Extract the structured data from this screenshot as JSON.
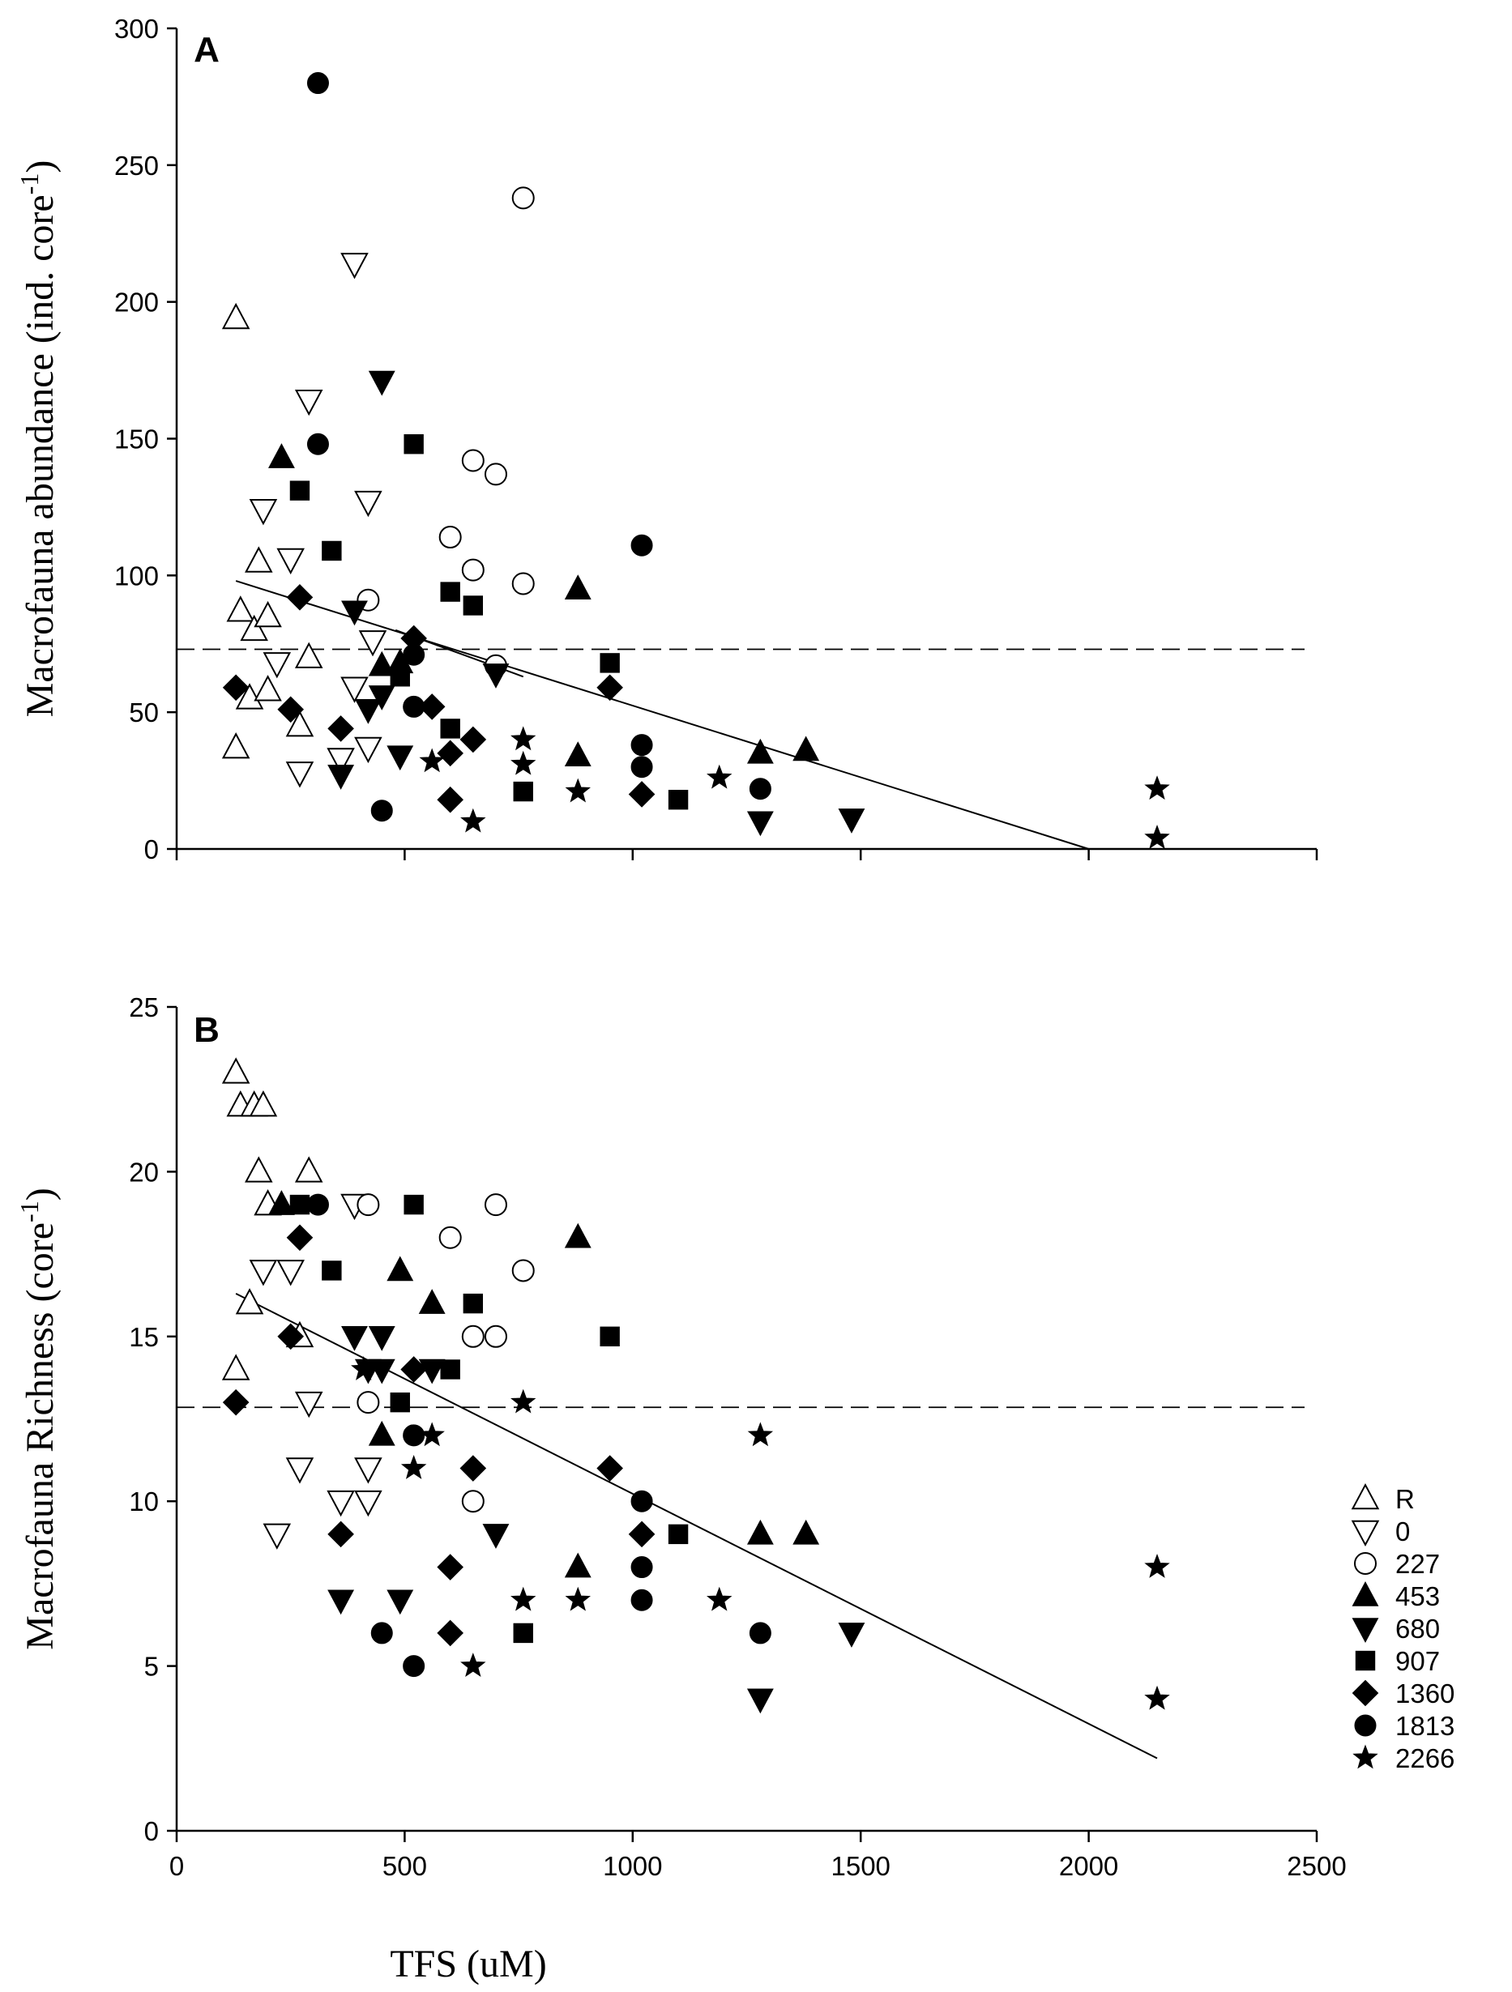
{
  "chart_data": [
    {
      "panel": "A",
      "type": "scatter",
      "ylabel_main": "Macrofauna abundance (ind. core",
      "ylabel_sup": "-1",
      "ylabel_end": ")",
      "xlim": [
        0,
        2500
      ],
      "ylim": [
        0,
        300
      ],
      "xticks": [
        0,
        500,
        1000,
        1500,
        2000,
        2500
      ],
      "yticks": [
        0,
        50,
        100,
        150,
        200,
        250,
        300
      ],
      "mean_line": 73,
      "regression": {
        "x": [
          130,
          2000
        ],
        "y": [
          98,
          0
        ]
      },
      "short_line": {
        "x": [
          480,
          760
        ],
        "y": [
          80,
          63
        ]
      },
      "series": [
        {
          "name": "R",
          "marker": "triangle-up-open",
          "points": [
            [
              130,
              194
            ],
            [
              140,
              87
            ],
            [
              130,
              37
            ],
            [
              160,
              55
            ],
            [
              170,
              80
            ],
            [
              180,
              105
            ],
            [
              200,
              85
            ],
            [
              200,
              58
            ],
            [
              270,
              45
            ],
            [
              290,
              70
            ]
          ]
        },
        {
          "name": "0",
          "marker": "triangle-down-open",
          "points": [
            [
              190,
              124
            ],
            [
              220,
              68
            ],
            [
              250,
              106
            ],
            [
              270,
              28
            ],
            [
              290,
              164
            ],
            [
              360,
              33
            ],
            [
              390,
              214
            ],
            [
              390,
              59
            ],
            [
              420,
              127
            ],
            [
              420,
              37
            ],
            [
              430,
              76
            ]
          ]
        },
        {
          "name": "227",
          "marker": "circle-open",
          "points": [
            [
              420,
              91
            ],
            [
              600,
              114
            ],
            [
              650,
              142
            ],
            [
              650,
              102
            ],
            [
              700,
              137
            ],
            [
              700,
              67
            ],
            [
              760,
              238
            ],
            [
              760,
              97
            ]
          ]
        },
        {
          "name": "453",
          "marker": "triangle-up-filled",
          "points": [
            [
              230,
              143
            ],
            [
              450,
              67
            ],
            [
              490,
              68
            ],
            [
              880,
              34
            ],
            [
              880,
              95
            ],
            [
              1280,
              35
            ],
            [
              1380,
              36
            ]
          ]
        },
        {
          "name": "680",
          "marker": "triangle-down-filled",
          "points": [
            [
              360,
              27
            ],
            [
              390,
              87
            ],
            [
              420,
              51
            ],
            [
              450,
              171
            ],
            [
              450,
              56
            ],
            [
              490,
              34
            ],
            [
              700,
              64
            ],
            [
              1280,
              10
            ],
            [
              1480,
              11
            ]
          ]
        },
        {
          "name": "907",
          "marker": "square-filled",
          "points": [
            [
              270,
              131
            ],
            [
              340,
              109
            ],
            [
              490,
              63
            ],
            [
              520,
              148
            ],
            [
              600,
              94
            ],
            [
              600,
              44
            ],
            [
              650,
              89
            ],
            [
              760,
              21
            ],
            [
              950,
              68
            ],
            [
              1100,
              18
            ]
          ]
        },
        {
          "name": "1360",
          "marker": "diamond-filled",
          "points": [
            [
              130,
              59
            ],
            [
              250,
              51
            ],
            [
              270,
              92
            ],
            [
              360,
              44
            ],
            [
              520,
              77
            ],
            [
              560,
              52
            ],
            [
              600,
              18
            ],
            [
              600,
              35
            ],
            [
              650,
              40
            ],
            [
              950,
              59
            ],
            [
              1020,
              20
            ]
          ]
        },
        {
          "name": "1813",
          "marker": "circle-filled",
          "points": [
            [
              310,
              280
            ],
            [
              310,
              148
            ],
            [
              450,
              14
            ],
            [
              520,
              71
            ],
            [
              520,
              52
            ],
            [
              1020,
              111
            ],
            [
              1020,
              38
            ],
            [
              1020,
              30
            ],
            [
              1280,
              22
            ]
          ]
        },
        {
          "name": "2266",
          "marker": "star",
          "points": [
            [
              560,
              32
            ],
            [
              650,
              10
            ],
            [
              760,
              40
            ],
            [
              760,
              31
            ],
            [
              880,
              21
            ],
            [
              1190,
              26
            ],
            [
              2150,
              22
            ],
            [
              2150,
              4
            ]
          ]
        }
      ]
    },
    {
      "panel": "B",
      "type": "scatter",
      "ylabel_main": "Macrofauna Richness (core",
      "ylabel_sup": "-1",
      "ylabel_end": ")",
      "xlim": [
        0,
        2500
      ],
      "ylim": [
        0,
        25
      ],
      "xticks": [
        0,
        500,
        1000,
        1500,
        2000,
        2500
      ],
      "yticks": [
        0,
        5,
        10,
        15,
        20,
        25
      ],
      "mean_line": 12.85,
      "regression": {
        "x": [
          130,
          2150
        ],
        "y": [
          16.3,
          2.2
        ]
      },
      "series": [
        {
          "name": "R",
          "marker": "triangle-up-open",
          "points": [
            [
              130,
              23
            ],
            [
              130,
              14
            ],
            [
              140,
              22
            ],
            [
              160,
              16
            ],
            [
              170,
              22
            ],
            [
              180,
              20
            ],
            [
              190,
              22
            ],
            [
              200,
              19
            ],
            [
              270,
              15
            ],
            [
              290,
              20
            ]
          ]
        },
        {
          "name": "0",
          "marker": "triangle-down-open",
          "points": [
            [
              190,
              17
            ],
            [
              220,
              9
            ],
            [
              250,
              17
            ],
            [
              270,
              11
            ],
            [
              290,
              13
            ],
            [
              360,
              10
            ],
            [
              390,
              19
            ],
            [
              420,
              11
            ],
            [
              420,
              10
            ]
          ]
        },
        {
          "name": "227",
          "marker": "circle-open",
          "points": [
            [
              420,
              13
            ],
            [
              420,
              19
            ],
            [
              600,
              18
            ],
            [
              650,
              15
            ],
            [
              650,
              10
            ],
            [
              700,
              15
            ],
            [
              700,
              19
            ],
            [
              760,
              17
            ]
          ]
        },
        {
          "name": "453",
          "marker": "triangle-up-filled",
          "points": [
            [
              230,
              19
            ],
            [
              450,
              12
            ],
            [
              490,
              17
            ],
            [
              560,
              16
            ],
            [
              880,
              18
            ],
            [
              880,
              8
            ],
            [
              1280,
              9
            ],
            [
              1380,
              9
            ]
          ]
        },
        {
          "name": "680",
          "marker": "triangle-down-filled",
          "points": [
            [
              360,
              7
            ],
            [
              390,
              15
            ],
            [
              420,
              14
            ],
            [
              450,
              15
            ],
            [
              450,
              14
            ],
            [
              490,
              7
            ],
            [
              560,
              14
            ],
            [
              700,
              9
            ],
            [
              1280,
              4
            ],
            [
              1480,
              6
            ]
          ]
        },
        {
          "name": "907",
          "marker": "square-filled",
          "points": [
            [
              270,
              19
            ],
            [
              340,
              17
            ],
            [
              490,
              13
            ],
            [
              520,
              19
            ],
            [
              600,
              14
            ],
            [
              650,
              16
            ],
            [
              760,
              6
            ],
            [
              950,
              15
            ],
            [
              1100,
              9
            ]
          ]
        },
        {
          "name": "1360",
          "marker": "diamond-filled",
          "points": [
            [
              130,
              13
            ],
            [
              250,
              15
            ],
            [
              270,
              18
            ],
            [
              360,
              9
            ],
            [
              520,
              14
            ],
            [
              600,
              6
            ],
            [
              600,
              8
            ],
            [
              650,
              11
            ],
            [
              950,
              11
            ],
            [
              1020,
              9
            ]
          ]
        },
        {
          "name": "1813",
          "marker": "circle-filled",
          "points": [
            [
              310,
              19
            ],
            [
              450,
              6
            ],
            [
              520,
              12
            ],
            [
              520,
              5
            ],
            [
              1020,
              10
            ],
            [
              1020,
              8
            ],
            [
              1020,
              7
            ],
            [
              1280,
              6
            ]
          ]
        },
        {
          "name": "2266",
          "marker": "star",
          "points": [
            [
              410,
              14
            ],
            [
              520,
              11
            ],
            [
              560,
              12
            ],
            [
              650,
              5
            ],
            [
              760,
              13
            ],
            [
              760,
              7
            ],
            [
              880,
              7
            ],
            [
              1190,
              7
            ],
            [
              1280,
              12
            ],
            [
              2150,
              8
            ],
            [
              2150,
              4
            ]
          ]
        }
      ]
    }
  ],
  "xlabel": "TFS (uM)",
  "legend": {
    "placement": "right",
    "entries": [
      {
        "label": "R",
        "marker": "triangle-up-open"
      },
      {
        "label": "0",
        "marker": "triangle-down-open"
      },
      {
        "label": "227",
        "marker": "circle-open"
      },
      {
        "label": "453",
        "marker": "triangle-up-filled"
      },
      {
        "label": "680",
        "marker": "triangle-down-filled"
      },
      {
        "label": "907",
        "marker": "square-filled"
      },
      {
        "label": "1360",
        "marker": "diamond-filled"
      },
      {
        "label": "1813",
        "marker": "circle-filled"
      },
      {
        "label": "2266",
        "marker": "star"
      }
    ]
  }
}
